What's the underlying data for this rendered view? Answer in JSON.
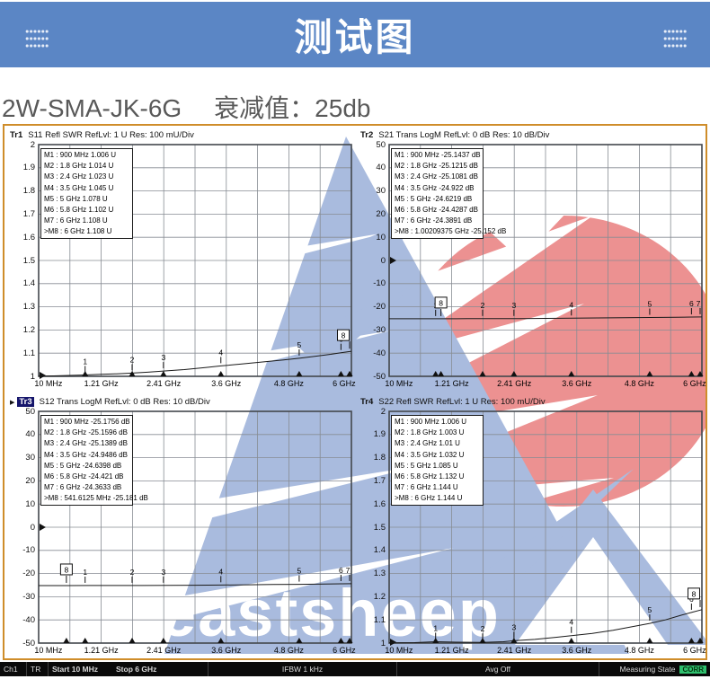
{
  "header": {
    "title": "测试图"
  },
  "subtitle": {
    "model": "2W-SMA-JK-6G",
    "attenuation": "衰减值：25db"
  },
  "watermark": {
    "text": "eastsheep"
  },
  "colors": {
    "banner_blue": "#5b86c5",
    "panel_border_orange": "#cf8d2a",
    "watermark_blue": "#a9bbde",
    "watermark_red": "#ec9191",
    "corr_green": "#2fc06e"
  },
  "status_bar": {
    "channel": "Ch1",
    "mode": "TR",
    "start": "Start 10 MHz",
    "stop": "Stop 6 GHz",
    "ifbw": "IFBW 1 kHz",
    "avg": "Avg Off",
    "measuring_label": "Measuring State",
    "corr_badge": "CORR"
  },
  "chart_data": [
    {
      "type": "line",
      "badge": "Tr1",
      "active": false,
      "title": "S11 Refl SWR RefLvl: 1  U Res: 100 mU/Div",
      "y_axis": {
        "labels": [
          "2",
          "1.9",
          "1.8",
          "1.7",
          "1.6",
          "1.5",
          "1.4",
          "1.3",
          "1.2",
          "1.1",
          "1"
        ],
        "min": 1,
        "max": 2
      },
      "x_axis": {
        "labels": [
          "10 MHz",
          "1.21 GHz",
          "2.41 GHz",
          "3.6 GHz",
          "4.8 GHz",
          "6 GHz"
        ],
        "cols": [
          0,
          2,
          4,
          6,
          8,
          10
        ],
        "start_ghz": 0.01,
        "stop_ghz": 6
      },
      "ref_level": 1,
      "marker_table": [
        "M1 :  900 MHz  1.006  U",
        "M2 :  1.8 GHz  1.014  U",
        "M3 :  2.4 GHz  1.023  U",
        "M4 :  3.5 GHz  1.045  U",
        "M5 :  5 GHz  1.078  U",
        "M6 :  5.8 GHz  1.102  U",
        "M7 :  6 GHz  1.108  U",
        ">M8 :  6 GHz  1.108  U"
      ],
      "markers": [
        {
          "n": "1",
          "f": 0.9,
          "v": 1.006
        },
        {
          "n": "2",
          "f": 1.8,
          "v": 1.014
        },
        {
          "n": "3",
          "f": 2.4,
          "v": 1.023
        },
        {
          "n": "4",
          "f": 3.5,
          "v": 1.045
        },
        {
          "n": "5",
          "f": 5.0,
          "v": 1.078
        },
        {
          "n": "6",
          "f": 5.8,
          "v": 1.102
        },
        {
          "n": "7",
          "f": 6.0,
          "v": 1.108
        },
        {
          "n": "8",
          "f": 6.0,
          "v": 1.108,
          "boxed": true
        }
      ],
      "trace": [
        [
          0.01,
          1.001
        ],
        [
          0.3,
          1.002
        ],
        [
          0.6,
          1.004
        ],
        [
          0.9,
          1.006
        ],
        [
          1.2,
          1.009
        ],
        [
          1.5,
          1.011
        ],
        [
          1.8,
          1.014
        ],
        [
          2.1,
          1.018
        ],
        [
          2.4,
          1.023
        ],
        [
          2.8,
          1.029
        ],
        [
          3.2,
          1.038
        ],
        [
          3.5,
          1.045
        ],
        [
          3.9,
          1.053
        ],
        [
          4.3,
          1.062
        ],
        [
          4.7,
          1.071
        ],
        [
          5.0,
          1.078
        ],
        [
          5.3,
          1.086
        ],
        [
          5.6,
          1.095
        ],
        [
          5.8,
          1.102
        ],
        [
          6.0,
          1.108
        ]
      ]
    },
    {
      "type": "line",
      "badge": "Tr2",
      "active": false,
      "title": "S21 Trans LogM RefLvl: 0  dB Res: 10  dB/Div",
      "y_axis": {
        "labels": [
          "50",
          "40",
          "30",
          "20",
          "10",
          "0",
          "-10",
          "-20",
          "-30",
          "-40",
          "-50"
        ],
        "min": -50,
        "max": 50
      },
      "x_axis": {
        "labels": [
          "10 MHz",
          "1.21 GHz",
          "2.41 GHz",
          "3.6 GHz",
          "4.8 GHz",
          "6 GHz"
        ],
        "cols": [
          0,
          2,
          4,
          6,
          8,
          10
        ],
        "start_ghz": 0.01,
        "stop_ghz": 6
      },
      "ref_level": 0,
      "marker_table": [
        "M1 :  900 MHz  -25.1437  dB",
        "M2 :  1.8 GHz  -25.1215  dB",
        "M3 :  2.4 GHz  -25.1081  dB",
        "M4 :  3.5 GHz  -24.922  dB",
        "M5 :  5 GHz  -24.6219  dB",
        "M6 :  5.8 GHz  -24.4287  dB",
        "M7 :  6 GHz  -24.3891  dB",
        ">M8 :  1.00209375 GHz  -25.152  dB"
      ],
      "markers": [
        {
          "n": "1",
          "f": 0.9,
          "v": -25.1437
        },
        {
          "n": "2",
          "f": 1.8,
          "v": -25.1215
        },
        {
          "n": "3",
          "f": 2.4,
          "v": -25.1081
        },
        {
          "n": "4",
          "f": 3.5,
          "v": -24.922
        },
        {
          "n": "5",
          "f": 5.0,
          "v": -24.6219
        },
        {
          "n": "6",
          "f": 5.8,
          "v": -24.4287
        },
        {
          "n": "7",
          "f": 6.0,
          "v": -24.3891
        },
        {
          "n": "8",
          "f": 1.00209375,
          "v": -25.152,
          "boxed": true
        }
      ],
      "trace": [
        [
          0.01,
          -25.15
        ],
        [
          0.5,
          -25.15
        ],
        [
          1.0,
          -25.144
        ],
        [
          1.5,
          -25.13
        ],
        [
          2.0,
          -25.118
        ],
        [
          2.5,
          -25.105
        ],
        [
          3.0,
          -25.0
        ],
        [
          3.5,
          -24.92
        ],
        [
          4.0,
          -24.82
        ],
        [
          4.5,
          -24.72
        ],
        [
          5.0,
          -24.62
        ],
        [
          5.5,
          -24.5
        ],
        [
          5.8,
          -24.43
        ],
        [
          6.0,
          -24.39
        ]
      ]
    },
    {
      "type": "line",
      "badge": "Tr3",
      "active": true,
      "title": "S12 Trans LogM RefLvl: 0  dB Res: 10  dB/Div",
      "y_axis": {
        "labels": [
          "50",
          "40",
          "30",
          "20",
          "10",
          "0",
          "-10",
          "-20",
          "-30",
          "-40",
          "-50"
        ],
        "min": -50,
        "max": 50
      },
      "x_axis": {
        "labels": [
          "10 MHz",
          "1.21 GHz",
          "2.41 GHz",
          "3.6 GHz",
          "4.8 GHz",
          "6 GHz"
        ],
        "cols": [
          0,
          2,
          4,
          6,
          8,
          10
        ],
        "start_ghz": 0.01,
        "stop_ghz": 6
      },
      "ref_level": 0,
      "marker_table": [
        "M1 :  900 MHz  -25.1756  dB",
        "M2 :  1.8 GHz  -25.1596  dB",
        "M3 :  2.4 GHz  -25.1389  dB",
        "M4 :  3.5 GHz  -24.9486  dB",
        "M5 :  5 GHz  -24.6398  dB",
        "M6 :  5.8 GHz  -24.421  dB",
        "M7 :  6 GHz  -24.3633  dB",
        ">M8 :  541.6125 MHz  -25.181  dB"
      ],
      "markers": [
        {
          "n": "1",
          "f": 0.9,
          "v": -25.1756
        },
        {
          "n": "2",
          "f": 1.8,
          "v": -25.1596
        },
        {
          "n": "3",
          "f": 2.4,
          "v": -25.1389
        },
        {
          "n": "4",
          "f": 3.5,
          "v": -24.9486
        },
        {
          "n": "5",
          "f": 5.0,
          "v": -24.6398
        },
        {
          "n": "6",
          "f": 5.8,
          "v": -24.421
        },
        {
          "n": "7",
          "f": 6.0,
          "v": -24.3633
        },
        {
          "n": "8",
          "f": 0.5416125,
          "v": -25.181,
          "boxed": true
        }
      ],
      "trace": [
        [
          0.01,
          -25.18
        ],
        [
          0.54,
          -25.181
        ],
        [
          1.0,
          -25.17
        ],
        [
          1.5,
          -25.163
        ],
        [
          2.0,
          -25.152
        ],
        [
          2.5,
          -25.135
        ],
        [
          3.0,
          -25.03
        ],
        [
          3.5,
          -24.949
        ],
        [
          4.0,
          -24.85
        ],
        [
          4.5,
          -24.74
        ],
        [
          5.0,
          -24.64
        ],
        [
          5.5,
          -24.51
        ],
        [
          5.8,
          -24.421
        ],
        [
          6.0,
          -24.363
        ]
      ]
    },
    {
      "type": "line",
      "badge": "Tr4",
      "active": false,
      "title": "S22 Refl SWR RefLvl: 1  U Res: 100 mU/Div",
      "y_axis": {
        "labels": [
          "2",
          "1.9",
          "1.8",
          "1.7",
          "1.6",
          "1.5",
          "1.4",
          "1.3",
          "1.2",
          "1.1",
          "1"
        ],
        "min": 1,
        "max": 2
      },
      "x_axis": {
        "labels": [
          "10 MHz",
          "1.21 GHz",
          "2.41 GHz",
          "3.6 GHz",
          "4.8 GHz",
          "6 GHz"
        ],
        "cols": [
          0,
          2,
          4,
          6,
          8,
          10
        ],
        "start_ghz": 0.01,
        "stop_ghz": 6
      },
      "ref_level": 1,
      "marker_table": [
        "M1 :  900 MHz  1.006  U",
        "M2 :  1.8 GHz  1.003  U",
        "M3 :  2.4 GHz  1.01  U",
        "M4 :  3.5 GHz  1.032  U",
        "M5 :  5 GHz  1.085  U",
        "M6 :  5.8 GHz  1.132  U",
        "M7 :  6 GHz  1.144  U",
        ">M8 :  6 GHz  1.144  U"
      ],
      "markers": [
        {
          "n": "1",
          "f": 0.9,
          "v": 1.006
        },
        {
          "n": "2",
          "f": 1.8,
          "v": 1.003
        },
        {
          "n": "3",
          "f": 2.4,
          "v": 1.01
        },
        {
          "n": "4",
          "f": 3.5,
          "v": 1.032
        },
        {
          "n": "5",
          "f": 5.0,
          "v": 1.085
        },
        {
          "n": "6",
          "f": 5.8,
          "v": 1.132
        },
        {
          "n": "7",
          "f": 6.0,
          "v": 1.144
        },
        {
          "n": "8",
          "f": 6.0,
          "v": 1.144,
          "boxed": true
        }
      ],
      "trace": [
        [
          0.01,
          1.001
        ],
        [
          0.5,
          1.002
        ],
        [
          0.9,
          1.006
        ],
        [
          1.3,
          1.004
        ],
        [
          1.8,
          1.003
        ],
        [
          2.2,
          1.006
        ],
        [
          2.4,
          1.01
        ],
        [
          2.8,
          1.016
        ],
        [
          3.2,
          1.025
        ],
        [
          3.5,
          1.032
        ],
        [
          3.9,
          1.042
        ],
        [
          4.3,
          1.055
        ],
        [
          4.7,
          1.072
        ],
        [
          5.0,
          1.085
        ],
        [
          5.3,
          1.1
        ],
        [
          5.6,
          1.12
        ],
        [
          5.8,
          1.132
        ],
        [
          6.0,
          1.144
        ]
      ]
    }
  ]
}
